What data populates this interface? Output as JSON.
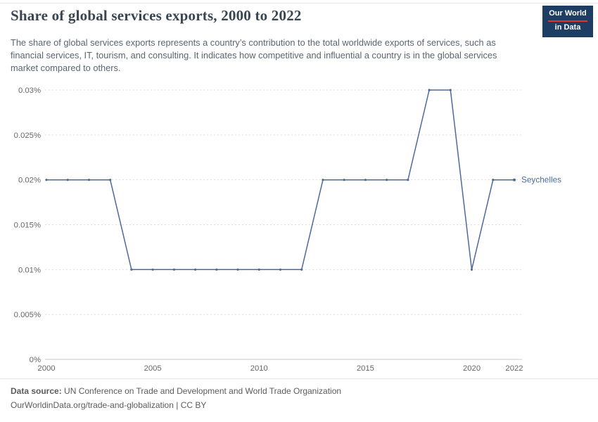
{
  "header": {
    "title": "Share of global services exports, 2000 to 2022",
    "subtitle": "The share of global services exports represents a country’s contribution to the total worldwide exports of services, such as financial services, IT, tourism, and consulting. It indicates how competitive and influential a country is in the global services market compared to others.",
    "logo": {
      "line1": "Our World",
      "line2": "in Data",
      "bg_color": "#1d3d63",
      "accent_color": "#e0362a"
    }
  },
  "chart_data": {
    "type": "line",
    "title": "Share of global services exports, 2000 to 2022",
    "x": [
      2000,
      2001,
      2002,
      2003,
      2004,
      2005,
      2006,
      2007,
      2008,
      2009,
      2010,
      2011,
      2012,
      2013,
      2014,
      2015,
      2016,
      2017,
      2018,
      2019,
      2020,
      2021,
      2022
    ],
    "series": [
      {
        "name": "Seychelles",
        "color": "#4C6A9C",
        "values": [
          0.02,
          0.02,
          0.02,
          0.02,
          0.01,
          0.01,
          0.01,
          0.01,
          0.01,
          0.01,
          0.01,
          0.01,
          0.01,
          0.02,
          0.02,
          0.02,
          0.02,
          0.02,
          0.03,
          0.03,
          0.01,
          0.02,
          0.02
        ]
      }
    ],
    "ylim": [
      0,
      0.03
    ],
    "yticks": [
      0,
      0.005,
      0.01,
      0.015,
      0.02,
      0.025,
      0.03
    ],
    "ytick_labels": [
      "0%",
      "0.005%",
      "0.01%",
      "0.015%",
      "0.02%",
      "0.025%",
      "0.03%"
    ],
    "xticks": [
      2000,
      2005,
      2010,
      2015,
      2020,
      2022
    ],
    "grid": true,
    "grid_color": "#dddddd",
    "zero_line_color": "#c8c8c8",
    "legend_position": "right-end-label"
  },
  "footer": {
    "source_label": "Data source:",
    "source_text": " UN Conference on Trade and Development and World Trade Organization",
    "license_line": "OurWorldinData.org/trade-and-globalization | CC BY"
  }
}
